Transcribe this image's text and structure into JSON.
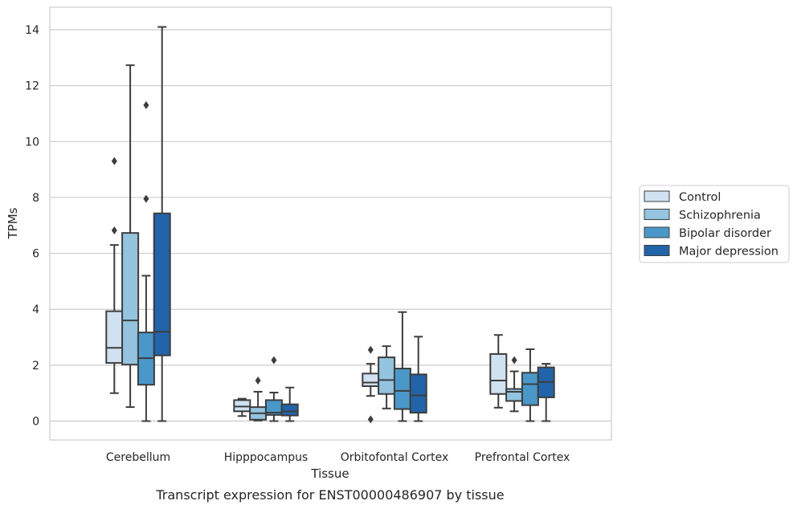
{
  "chart_data": {
    "type": "box",
    "caption": "Transcript expression for ENST00000486907 by tissue",
    "xlabel": "Tissue",
    "ylabel": "TPMs",
    "ylim": [
      -0.7,
      14.8
    ],
    "yticks": [
      0,
      2,
      4,
      6,
      8,
      10,
      12,
      14
    ],
    "ytick_labels": [
      "0",
      "2",
      "4",
      "6",
      "8",
      "10",
      "12",
      "14"
    ],
    "grid": "horizontal",
    "legend_position": "right",
    "categories": [
      "Cerebellum",
      "Hipppocampus",
      "Orbitofontal Cortex",
      "Prefrontal Cortex"
    ],
    "series": [
      {
        "name": "Control",
        "color": "#d0e1f2",
        "boxes": [
          {
            "min": 1.0,
            "q1": 2.08,
            "median": 2.62,
            "q3": 3.93,
            "max": 6.3,
            "outliers": [
              6.82,
              9.3
            ]
          },
          {
            "min": 0.18,
            "q1": 0.35,
            "median": 0.52,
            "q3": 0.75,
            "max": 0.8,
            "outliers": []
          },
          {
            "min": 0.9,
            "q1": 1.25,
            "median": 1.38,
            "q3": 1.7,
            "max": 2.05,
            "outliers": [
              2.55,
              0.06
            ]
          },
          {
            "min": 0.48,
            "q1": 0.97,
            "median": 1.45,
            "q3": 2.4,
            "max": 3.08,
            "outliers": []
          }
        ]
      },
      {
        "name": "Schizophrenia",
        "color": "#94c4df",
        "boxes": [
          {
            "min": 0.5,
            "q1": 2.02,
            "median": 3.6,
            "q3": 6.73,
            "max": 12.73,
            "outliers": []
          },
          {
            "min": 0.02,
            "q1": 0.05,
            "median": 0.28,
            "q3": 0.5,
            "max": 1.05,
            "outliers": [
              1.45
            ]
          },
          {
            "min": 0.45,
            "q1": 0.97,
            "median": 1.47,
            "q3": 2.28,
            "max": 2.68,
            "outliers": []
          },
          {
            "min": 0.35,
            "q1": 0.72,
            "median": 1.05,
            "q3": 1.15,
            "max": 1.78,
            "outliers": [
              2.18
            ]
          }
        ]
      },
      {
        "name": "Bipolar disorder",
        "color": "#4a98c9",
        "boxes": [
          {
            "min": 0.0,
            "q1": 1.3,
            "median": 2.25,
            "q3": 3.17,
            "max": 5.2,
            "outliers": [
              7.95,
              11.3
            ]
          },
          {
            "min": 0.0,
            "q1": 0.22,
            "median": 0.3,
            "q3": 0.75,
            "max": 1.02,
            "outliers": [
              2.18
            ]
          },
          {
            "min": 0.0,
            "q1": 0.43,
            "median": 1.08,
            "q3": 1.88,
            "max": 3.9,
            "outliers": []
          },
          {
            "min": 0.0,
            "q1": 0.57,
            "median": 1.32,
            "q3": 1.73,
            "max": 2.57,
            "outliers": []
          }
        ]
      },
      {
        "name": "Major depression",
        "color": "#2264aa",
        "boxes": [
          {
            "min": 0.0,
            "q1": 2.35,
            "median": 3.2,
            "q3": 7.43,
            "max": 14.1,
            "outliers": []
          },
          {
            "min": 0.0,
            "q1": 0.2,
            "median": 0.35,
            "q3": 0.6,
            "max": 1.2,
            "outliers": []
          },
          {
            "min": 0.0,
            "q1": 0.3,
            "median": 0.92,
            "q3": 1.67,
            "max": 3.02,
            "outliers": []
          },
          {
            "min": 0.0,
            "q1": 0.85,
            "median": 1.4,
            "q3": 1.92,
            "max": 2.05,
            "outliers": []
          }
        ]
      }
    ]
  }
}
